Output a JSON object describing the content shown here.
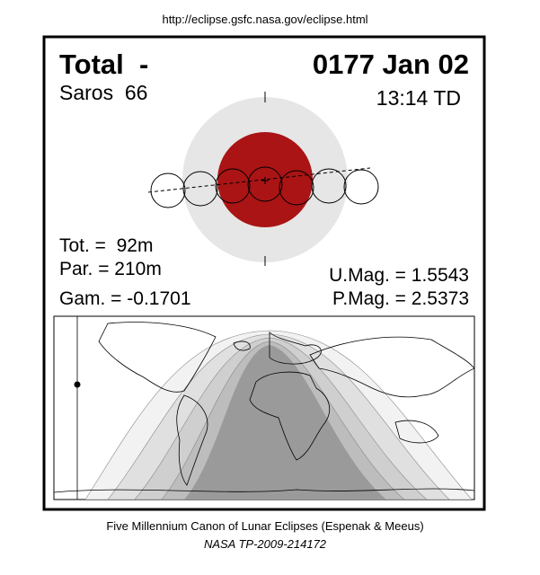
{
  "header": {
    "url": "http://eclipse.gsfc.nasa.gov/eclipse.html"
  },
  "eclipse": {
    "type": "Total  -",
    "date": "0177 Jan 02",
    "saros": "Saros  66",
    "time": "13:14 TD",
    "tot": "Tot. =  92m",
    "par": "Par. = 210m",
    "gam": "Gam. = -0.1701",
    "umag": "U.Mag. = 1.5543",
    "pmag": "P.Mag. = 2.5373"
  },
  "footer": {
    "line1": "Five Millennium Canon of Lunar Eclipses (Espenak & Meeus)",
    "line2": "NASA TP-2009-214172"
  }
}
